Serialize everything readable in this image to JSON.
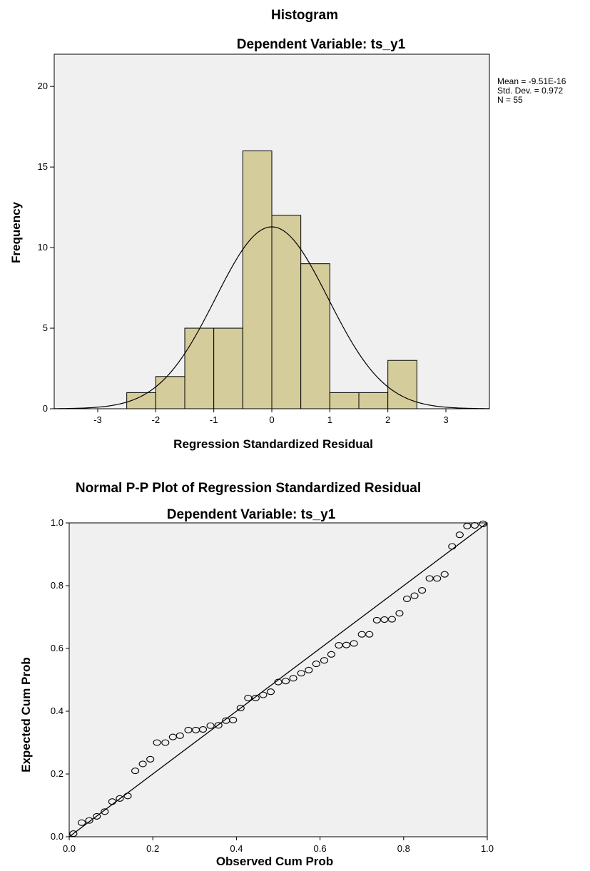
{
  "chart_data": [
    {
      "type": "bar",
      "title": "Histogram",
      "subtitle": "Dependent Variable: ts_y1",
      "xlabel": "Regression Standardized Residual",
      "ylabel": "Frequency",
      "bin_edges": [
        -2.5,
        -2.0,
        -1.5,
        -1.0,
        -0.5,
        0.0,
        0.5,
        1.0,
        1.5,
        2.0,
        2.5
      ],
      "values": [
        1,
        2,
        5,
        5,
        16,
        12,
        9,
        1,
        1,
        3
      ],
      "xlim": [
        -3.75,
        3.75
      ],
      "ylim": [
        0,
        22
      ],
      "xticks": [
        "-3",
        "-2",
        "-1",
        "0",
        "1",
        "2",
        "3"
      ],
      "yticks": [
        "0",
        "5",
        "10",
        "15",
        "20"
      ],
      "normal_curve": {
        "mean": 0,
        "sd": 0.972,
        "n": 55,
        "bin_width": 0.5
      },
      "stats": [
        "Mean = -9.51E-16",
        "Std. Dev. = 0.972",
        "N = 55"
      ],
      "colors": {
        "bar": "#d4cd9b",
        "plot_bg": "#f0f0f0"
      },
      "grid": false
    },
    {
      "type": "scatter",
      "title": "Normal P-P Plot of Regression Standardized Residual",
      "subtitle": "Dependent Variable: ts_y1",
      "xlabel": "Observed Cum Prob",
      "ylabel": "Expected Cum Prob",
      "xlim": [
        0,
        1
      ],
      "ylim": [
        0,
        1
      ],
      "xticks": [
        "0.0",
        "0.2",
        "0.4",
        "0.6",
        "0.8",
        "1.0"
      ],
      "yticks": [
        "0.0",
        "0.2",
        "0.4",
        "0.6",
        "0.8",
        "1.0"
      ],
      "reference_line": [
        [
          0,
          0
        ],
        [
          1,
          1
        ]
      ],
      "points": [
        [
          0.01,
          0.01
        ],
        [
          0.03,
          0.045
        ],
        [
          0.048,
          0.052
        ],
        [
          0.066,
          0.065
        ],
        [
          0.085,
          0.08
        ],
        [
          0.103,
          0.112
        ],
        [
          0.121,
          0.122
        ],
        [
          0.14,
          0.13
        ],
        [
          0.158,
          0.21
        ],
        [
          0.176,
          0.232
        ],
        [
          0.194,
          0.247
        ],
        [
          0.21,
          0.3
        ],
        [
          0.23,
          0.3
        ],
        [
          0.248,
          0.318
        ],
        [
          0.265,
          0.322
        ],
        [
          0.285,
          0.34
        ],
        [
          0.303,
          0.34
        ],
        [
          0.32,
          0.342
        ],
        [
          0.338,
          0.354
        ],
        [
          0.357,
          0.355
        ],
        [
          0.375,
          0.37
        ],
        [
          0.392,
          0.372
        ],
        [
          0.41,
          0.41
        ],
        [
          0.428,
          0.442
        ],
        [
          0.446,
          0.442
        ],
        [
          0.464,
          0.452
        ],
        [
          0.482,
          0.462
        ],
        [
          0.5,
          0.493
        ],
        [
          0.518,
          0.496
        ],
        [
          0.536,
          0.505
        ],
        [
          0.555,
          0.521
        ],
        [
          0.573,
          0.531
        ],
        [
          0.591,
          0.551
        ],
        [
          0.61,
          0.562
        ],
        [
          0.627,
          0.581
        ],
        [
          0.645,
          0.61
        ],
        [
          0.663,
          0.611
        ],
        [
          0.681,
          0.616
        ],
        [
          0.7,
          0.645
        ],
        [
          0.718,
          0.645
        ],
        [
          0.736,
          0.69
        ],
        [
          0.754,
          0.692
        ],
        [
          0.772,
          0.693
        ],
        [
          0.79,
          0.712
        ],
        [
          0.808,
          0.758
        ],
        [
          0.826,
          0.768
        ],
        [
          0.844,
          0.785
        ],
        [
          0.862,
          0.823
        ],
        [
          0.88,
          0.823
        ],
        [
          0.898,
          0.836
        ],
        [
          0.916,
          0.925
        ],
        [
          0.934,
          0.962
        ],
        [
          0.952,
          0.99
        ],
        [
          0.97,
          0.992
        ],
        [
          0.99,
          0.997
        ]
      ],
      "colors": {
        "plot_bg": "#f0f0f0"
      },
      "grid": false
    }
  ]
}
